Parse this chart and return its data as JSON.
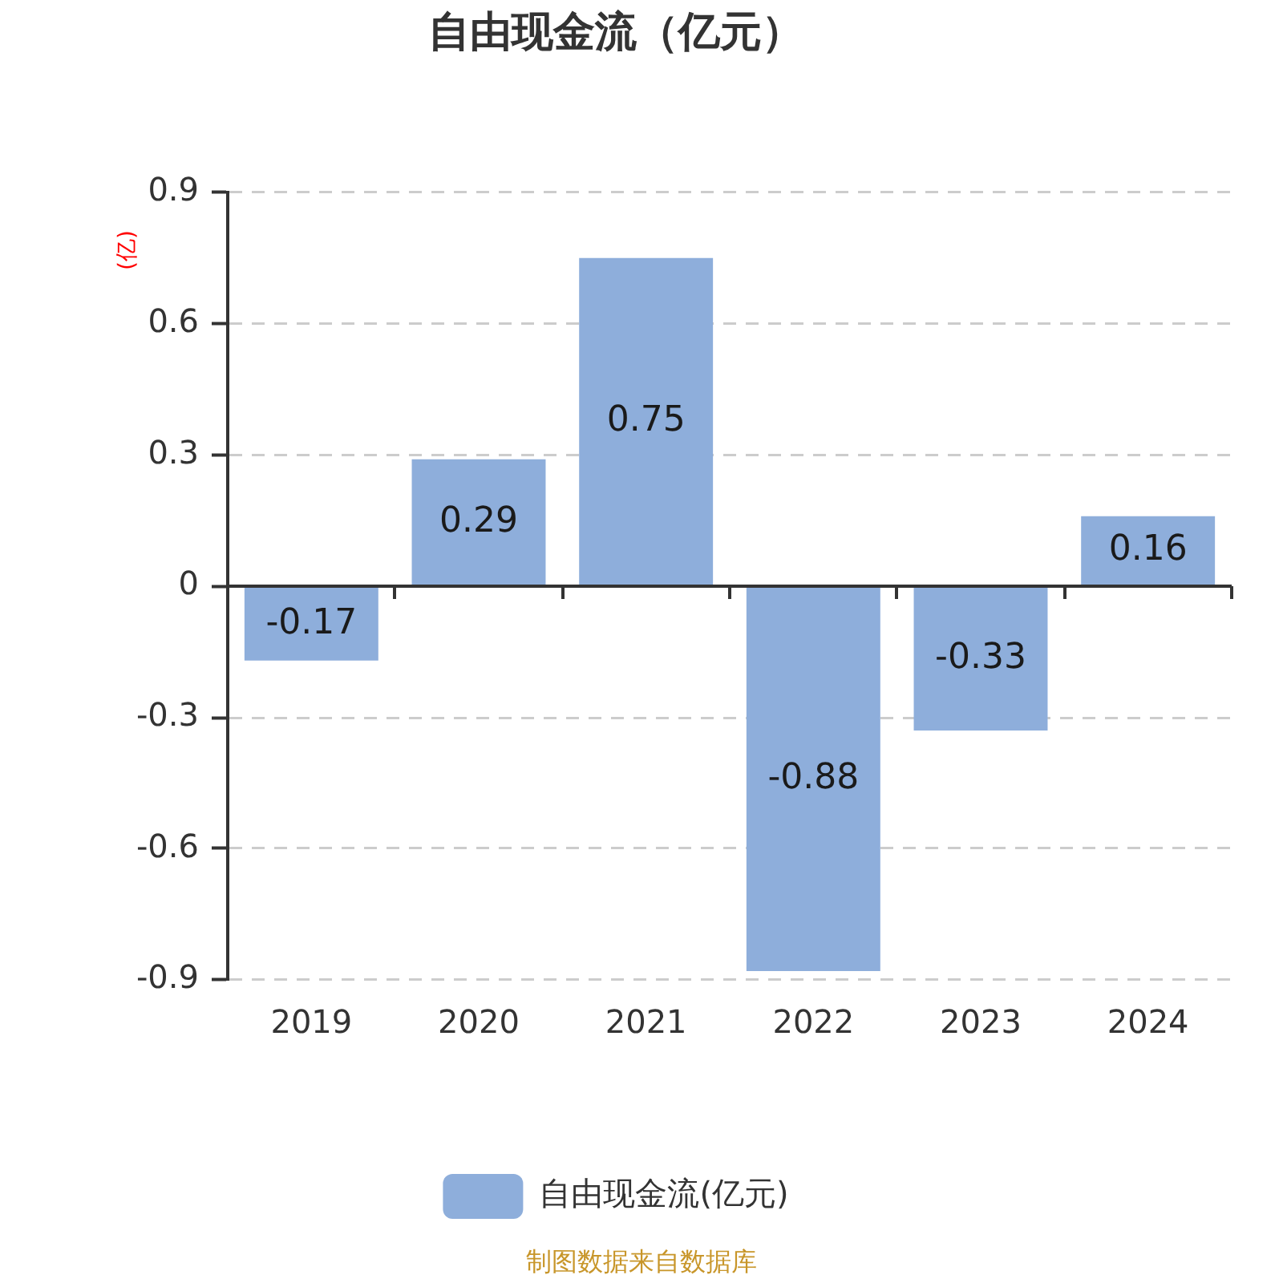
{
  "chart_data": {
    "type": "bar",
    "title": "自由现金流（亿元）",
    "ylabel": "(亿)",
    "categories": [
      "2019",
      "2020",
      "2021",
      "2022",
      "2023",
      "2024"
    ],
    "series": [
      {
        "name": "自由现金流(亿元)",
        "color": "#8eaedb",
        "values": [
          -0.17,
          0.29,
          0.75,
          -0.88,
          -0.33,
          0.16
        ]
      }
    ],
    "ylim": [
      -0.9,
      0.9
    ],
    "yticks": [
      -0.9,
      -0.6,
      -0.3,
      0,
      0.3,
      0.6,
      0.9
    ],
    "grid": "y",
    "legend": "bottom",
    "data_labels": true,
    "annotations": [
      "制图数据来自数据库"
    ]
  }
}
